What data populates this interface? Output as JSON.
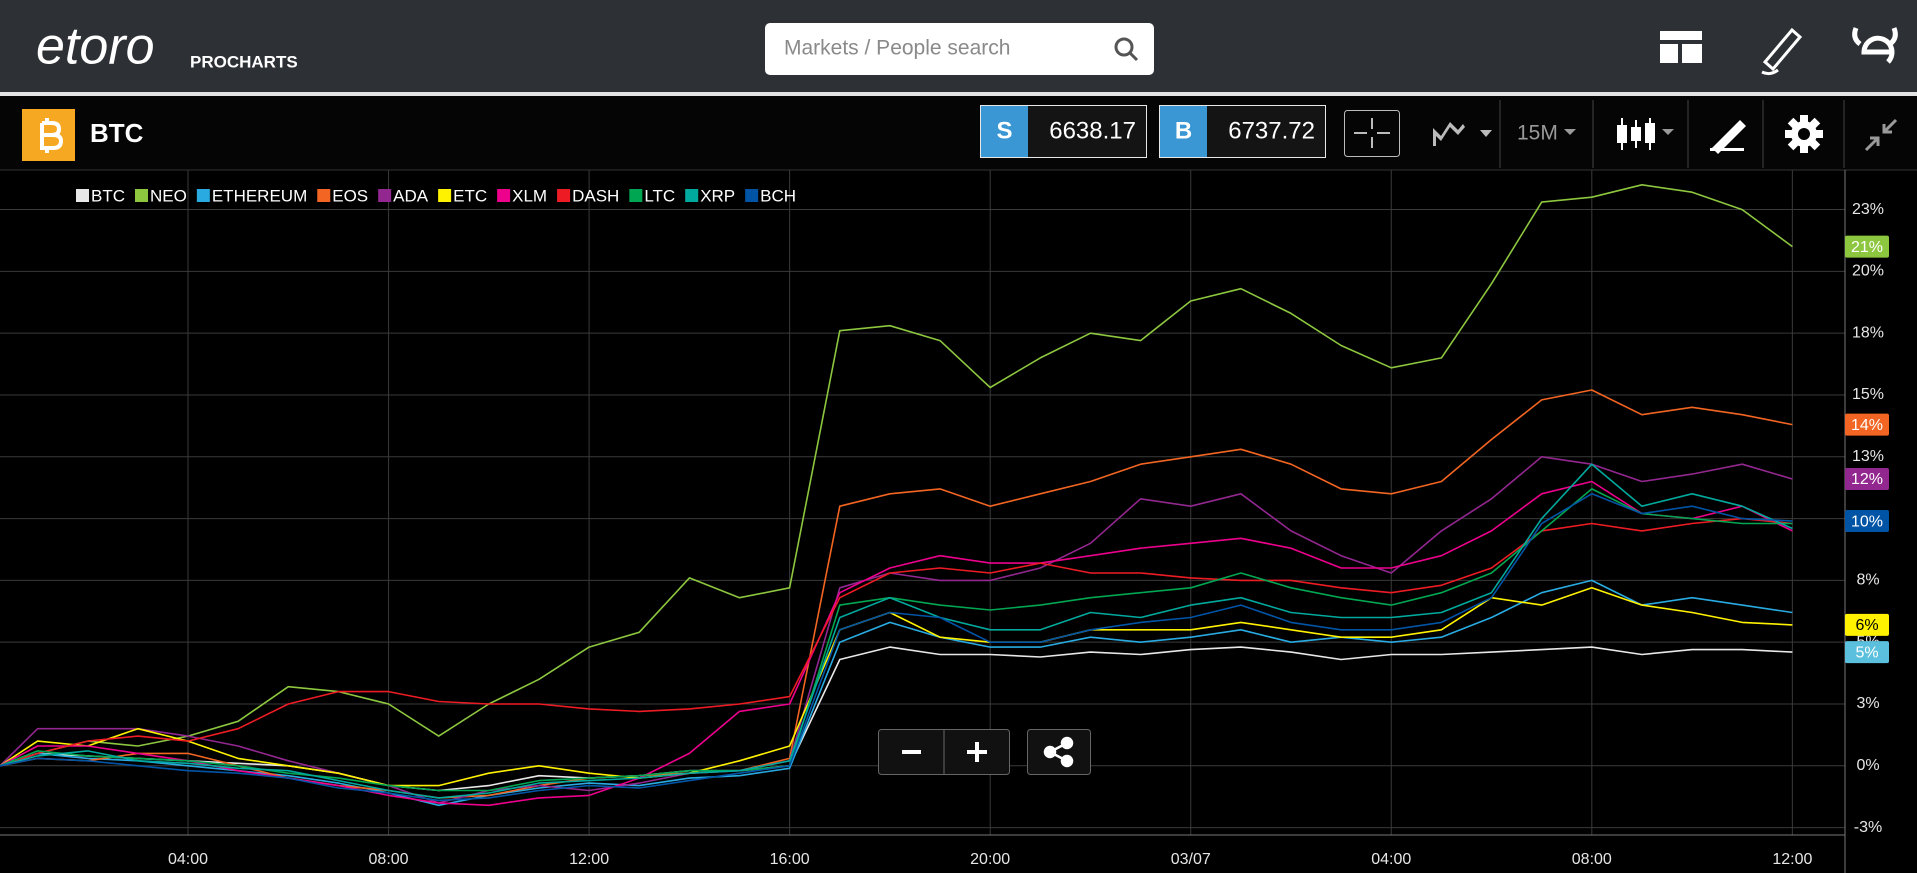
{
  "header": {
    "logo": "etoro",
    "product": "PROCHARTS",
    "search_placeholder": "Markets / People search"
  },
  "toolbar": {
    "instrument": "BTC",
    "sell_label": "S",
    "sell_price": 6638.17,
    "buy_label": "B",
    "buy_price": 6737.72,
    "interval": "15M"
  },
  "chart_data": {
    "type": "line",
    "x": [
      0.25,
      1,
      2,
      3,
      4,
      5,
      6,
      7,
      8,
      9,
      10,
      11,
      12,
      13,
      14,
      15,
      16,
      17,
      18,
      19,
      20,
      21,
      22,
      23,
      24,
      25,
      26,
      27,
      28,
      29,
      30,
      31,
      32,
      33,
      34,
      35,
      36
    ],
    "xlim": [
      0.25,
      37.05
    ],
    "xticks": [
      {
        "value": 4,
        "label": "04:00"
      },
      {
        "value": 8,
        "label": "08:00"
      },
      {
        "value": 12,
        "label": "12:00"
      },
      {
        "value": 16,
        "label": "16:00"
      },
      {
        "value": 20,
        "label": "20:00"
      },
      {
        "value": 24,
        "label": "03/07"
      },
      {
        "value": 28,
        "label": "04:00"
      },
      {
        "value": 32,
        "label": "08:00"
      },
      {
        "value": 36,
        "label": "12:00"
      }
    ],
    "ylim": [
      -2.8,
      24.1
    ],
    "yticks": [
      {
        "value": -2.5,
        "label": "-3%"
      },
      {
        "value": 0,
        "label": "0%"
      },
      {
        "value": 2.5,
        "label": "3%"
      },
      {
        "value": 5,
        "label": "5%"
      },
      {
        "value": 7.5,
        "label": "8%"
      },
      {
        "value": 10,
        "label": "10%"
      },
      {
        "value": 12.5,
        "label": "13%"
      },
      {
        "value": 15,
        "label": "15%"
      },
      {
        "value": 17.5,
        "label": "18%"
      },
      {
        "value": 20,
        "label": "20%"
      },
      {
        "value": 22.5,
        "label": "23%"
      }
    ],
    "grid": true,
    "legend": "top-left",
    "series": [
      {
        "name": "BTC",
        "color": "#e8e8e8",
        "badge_color": "#5bc0de",
        "values": [
          0,
          0.5,
          0.4,
          0.3,
          0.2,
          0.1,
          0,
          -0.3,
          -0.8,
          -1.0,
          -0.8,
          -0.4,
          -0.5,
          -0.4,
          -0.2,
          -0.2,
          0.0,
          4.3,
          4.8,
          4.5,
          4.5,
          4.4,
          4.6,
          4.5,
          4.7,
          4.8,
          4.6,
          4.3,
          4.5,
          4.5,
          4.6,
          4.7,
          4.8,
          4.5,
          4.7,
          4.7,
          4.6
        ],
        "value_labels": [
          null,
          null,
          null,
          null,
          null,
          null,
          null,
          null,
          null,
          null,
          null,
          null,
          null,
          null,
          null,
          null,
          null,
          null,
          null,
          null,
          null,
          null,
          null,
          null,
          null,
          null,
          null,
          null,
          null,
          null,
          null,
          null,
          null,
          null,
          null,
          null,
          "5%"
        ]
      },
      {
        "name": "NEO",
        "color": "#8dc63f",
        "values": [
          0,
          0.5,
          1.0,
          0.8,
          1.2,
          1.8,
          3.2,
          3.0,
          2.5,
          1.2,
          2.5,
          3.5,
          4.8,
          5.4,
          7.6,
          6.8,
          7.2,
          17.6,
          17.8,
          17.2,
          15.3,
          16.5,
          17.5,
          17.2,
          18.8,
          19.3,
          18.3,
          17.0,
          16.1,
          16.5,
          19.5,
          22.8,
          23.0,
          23.5,
          23.2,
          22.5,
          21.0
        ],
        "value_labels": [
          null,
          null,
          null,
          null,
          null,
          null,
          null,
          null,
          null,
          null,
          null,
          null,
          null,
          null,
          null,
          null,
          null,
          null,
          null,
          null,
          null,
          null,
          null,
          null,
          null,
          null,
          null,
          null,
          null,
          null,
          null,
          null,
          null,
          null,
          null,
          null,
          "21%"
        ]
      },
      {
        "name": "ETHEREUM",
        "color": "#29abe2",
        "values": [
          0,
          0.5,
          0.3,
          0.2,
          0.0,
          -0.2,
          -0.4,
          -0.7,
          -1.1,
          -1.6,
          -1.2,
          -0.9,
          -0.7,
          -0.8,
          -0.5,
          -0.4,
          -0.1,
          5.0,
          5.8,
          5.2,
          4.8,
          4.8,
          5.2,
          5.0,
          5.2,
          5.5,
          5.0,
          5.2,
          5.0,
          5.2,
          6.0,
          7.0,
          7.5,
          6.5,
          6.8,
          6.5,
          6.2
        ]
      },
      {
        "name": "EOS",
        "color": "#f26522",
        "values": [
          0,
          0.3,
          0.2,
          0.5,
          0.5,
          0,
          -0.5,
          -0.8,
          -1.0,
          -1.3,
          -1.2,
          -0.8,
          -0.5,
          -0.4,
          -0.3,
          -0.2,
          0.3,
          10.5,
          11.0,
          11.2,
          10.5,
          11.0,
          11.5,
          12.2,
          12.5,
          12.8,
          12.2,
          11.2,
          11.0,
          11.5,
          13.2,
          14.8,
          15.2,
          14.2,
          14.5,
          14.2,
          13.8
        ],
        "value_labels": [
          null,
          null,
          null,
          null,
          null,
          null,
          null,
          null,
          null,
          null,
          null,
          null,
          null,
          null,
          null,
          null,
          null,
          null,
          null,
          null,
          null,
          null,
          null,
          null,
          null,
          null,
          null,
          null,
          null,
          null,
          null,
          null,
          null,
          null,
          null,
          null,
          "14%"
        ]
      },
      {
        "name": "ADA",
        "color": "#92278f",
        "values": [
          0,
          1.5,
          1.5,
          1.5,
          1.2,
          0.8,
          0.2,
          -0.3,
          -0.8,
          -1.5,
          -1.0,
          -0.8,
          -1.0,
          -0.7,
          -0.3,
          -0.2,
          0.2,
          7.2,
          7.8,
          7.5,
          7.5,
          8.0,
          9.0,
          10.8,
          10.5,
          11.0,
          9.5,
          8.5,
          7.8,
          9.5,
          10.8,
          12.5,
          12.2,
          11.5,
          11.8,
          12.2,
          11.6
        ],
        "value_labels": [
          null,
          null,
          null,
          null,
          null,
          null,
          null,
          null,
          null,
          null,
          null,
          null,
          null,
          null,
          null,
          null,
          null,
          null,
          null,
          null,
          null,
          null,
          null,
          null,
          null,
          null,
          null,
          null,
          null,
          null,
          null,
          null,
          null,
          null,
          null,
          null,
          "12%"
        ]
      },
      {
        "name": "ETC",
        "color": "#fff200",
        "values": [
          0,
          1.0,
          0.8,
          1.5,
          1.0,
          0.3,
          0,
          -0.3,
          -0.8,
          -0.8,
          -0.3,
          0.0,
          -0.3,
          -0.5,
          -0.3,
          0.2,
          0.8,
          5.5,
          6.2,
          5.2,
          5.0,
          5.0,
          5.5,
          5.5,
          5.5,
          5.8,
          5.5,
          5.2,
          5.2,
          5.5,
          6.8,
          6.5,
          7.2,
          6.5,
          6.2,
          5.8,
          5.7
        ],
        "value_labels": [
          null,
          null,
          null,
          null,
          null,
          null,
          null,
          null,
          null,
          null,
          null,
          null,
          null,
          null,
          null,
          null,
          null,
          null,
          null,
          null,
          null,
          null,
          null,
          null,
          null,
          null,
          null,
          null,
          null,
          null,
          null,
          null,
          null,
          null,
          null,
          null,
          "6%"
        ]
      },
      {
        "name": "XLM",
        "color": "#ec008c",
        "values": [
          0,
          0.8,
          0.8,
          0.5,
          0.2,
          -0.2,
          -0.5,
          -0.8,
          -1.2,
          -1.5,
          -1.6,
          -1.3,
          -1.2,
          -0.5,
          0.5,
          2.2,
          2.5,
          7.0,
          8.0,
          8.5,
          8.2,
          8.2,
          8.5,
          8.8,
          9.0,
          9.2,
          8.8,
          8.0,
          8.0,
          8.5,
          9.5,
          11.0,
          11.5,
          10.2,
          10.0,
          10.5,
          9.5
        ]
      },
      {
        "name": "DASH",
        "color": "#ed1c24",
        "values": [
          0,
          0.5,
          1.0,
          1.2,
          1.0,
          1.5,
          2.5,
          3.0,
          3.0,
          2.6,
          2.5,
          2.5,
          2.3,
          2.2,
          2.3,
          2.5,
          2.8,
          6.8,
          7.8,
          8.0,
          7.8,
          8.2,
          7.8,
          7.8,
          7.6,
          7.5,
          7.5,
          7.2,
          7.0,
          7.3,
          8.0,
          9.5,
          9.8,
          9.5,
          9.8,
          10.0,
          9.8
        ]
      },
      {
        "name": "LTC",
        "color": "#00a651",
        "values": [
          0,
          0.6,
          0.4,
          0.3,
          0.2,
          0,
          -0.3,
          -0.5,
          -0.8,
          -1.0,
          -1.0,
          -0.6,
          -0.5,
          -0.4,
          -0.2,
          -0.2,
          0.0,
          6.5,
          6.8,
          6.5,
          6.3,
          6.5,
          6.8,
          7.0,
          7.2,
          7.8,
          7.2,
          6.8,
          6.5,
          7.0,
          7.8,
          9.5,
          11.2,
          10.2,
          10.0,
          9.8,
          9.8
        ]
      },
      {
        "name": "XRP",
        "color": "#00a99d",
        "values": [
          0,
          0.4,
          0.6,
          0.2,
          0.1,
          -0.1,
          -0.2,
          -0.6,
          -1.0,
          -1.3,
          -1.1,
          -0.7,
          -0.6,
          -0.5,
          -0.3,
          -0.2,
          0.2,
          6.0,
          6.8,
          6.0,
          5.5,
          5.5,
          6.2,
          6.0,
          6.5,
          6.8,
          6.2,
          6.0,
          6.0,
          6.2,
          7.0,
          10.0,
          12.2,
          10.5,
          11.0,
          10.5,
          9.6
        ]
      },
      {
        "name": "BCH",
        "color": "#0054a6",
        "values": [
          0,
          0.3,
          0.2,
          0.0,
          -0.2,
          -0.3,
          -0.5,
          -0.9,
          -1.1,
          -1.4,
          -1.3,
          -1.0,
          -0.8,
          -0.9,
          -0.6,
          -0.3,
          0.0,
          5.5,
          6.2,
          6.0,
          5.0,
          5.0,
          5.5,
          5.8,
          6.0,
          6.5,
          5.8,
          5.5,
          5.5,
          5.8,
          6.8,
          9.8,
          11.0,
          10.2,
          10.5,
          10.0,
          9.9
        ],
        "value_labels": [
          null,
          null,
          null,
          null,
          null,
          null,
          null,
          null,
          null,
          null,
          null,
          null,
          null,
          null,
          null,
          null,
          null,
          null,
          null,
          null,
          null,
          null,
          null,
          null,
          null,
          null,
          null,
          null,
          null,
          null,
          null,
          null,
          null,
          null,
          null,
          null,
          "10%"
        ]
      }
    ]
  }
}
